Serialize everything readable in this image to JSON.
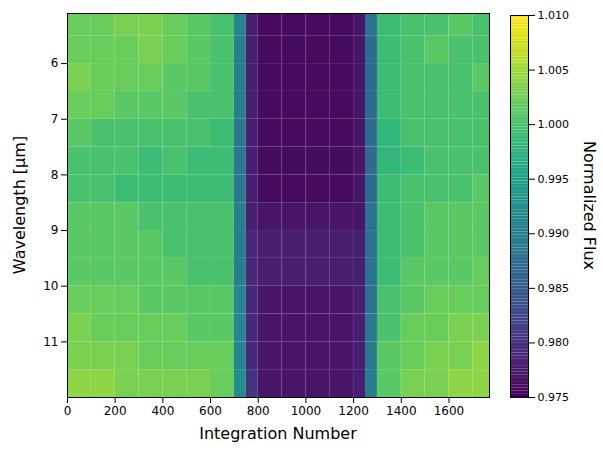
{
  "chart_data": {
    "type": "heatmap",
    "x_label": "Integration Number",
    "y_label": "Wavelength [µm]",
    "xlim": [
      0,
      1770
    ],
    "xticks": [
      0,
      200,
      400,
      600,
      800,
      1000,
      1200,
      1400,
      1600
    ],
    "ylim": [
      12.0,
      5.1
    ],
    "yticks": [
      6,
      7,
      8,
      9,
      10,
      11
    ],
    "color": "viridis",
    "cells": {
      "x_edges": [
        0,
        100,
        200,
        300,
        400,
        500,
        600,
        700,
        750,
        800,
        900,
        1000,
        1100,
        1200,
        1250,
        1300,
        1400,
        1500,
        1600,
        1700,
        1770
      ],
      "y_edges": [
        5.1,
        5.5,
        6.0,
        6.5,
        7.0,
        7.5,
        8.0,
        8.5,
        9.0,
        9.5,
        10.0,
        10.5,
        11.0,
        11.5,
        12.0
      ],
      "values": [
        [
          1.002,
          1.002,
          1.003,
          1.003,
          1.002,
          1.001,
          1.0,
          0.991,
          0.978,
          0.976,
          0.976,
          0.976,
          0.976,
          0.977,
          0.988,
          0.999,
          1.0,
          1.0,
          1.001,
          1.0
        ],
        [
          1.002,
          1.002,
          1.002,
          1.003,
          1.002,
          1.001,
          1.0,
          0.99,
          0.978,
          0.976,
          0.976,
          0.976,
          0.976,
          0.977,
          0.987,
          0.999,
          1.0,
          1.001,
          1.0,
          1.0
        ],
        [
          1.003,
          1.002,
          1.002,
          1.002,
          1.001,
          1.001,
          1.0,
          0.99,
          0.978,
          0.976,
          0.976,
          0.976,
          0.976,
          0.977,
          0.987,
          0.999,
          1.0,
          1.0,
          1.0,
          1.001
        ],
        [
          1.002,
          1.002,
          1.001,
          1.001,
          1.001,
          1.0,
          1.0,
          0.99,
          0.978,
          0.976,
          0.976,
          0.976,
          0.976,
          0.977,
          0.987,
          0.999,
          1.0,
          1.0,
          1.0,
          1.0
        ],
        [
          1.001,
          1.0,
          1.0,
          1.0,
          1.0,
          1.0,
          0.999,
          0.989,
          0.978,
          0.976,
          0.976,
          0.976,
          0.976,
          0.977,
          0.987,
          0.998,
          1.0,
          1.0,
          1.0,
          1.0
        ],
        [
          1.0,
          1.0,
          1.0,
          0.999,
          1.0,
          0.999,
          0.999,
          0.989,
          0.978,
          0.976,
          0.976,
          0.976,
          0.976,
          0.977,
          0.987,
          0.998,
          0.999,
          1.0,
          1.0,
          1.0
        ],
        [
          1.0,
          1.0,
          0.999,
          0.999,
          0.999,
          0.999,
          0.999,
          0.989,
          0.978,
          0.976,
          0.976,
          0.976,
          0.976,
          0.977,
          0.987,
          0.999,
          1.0,
          1.0,
          1.0,
          1.001
        ],
        [
          1.001,
          1.001,
          1.001,
          1.0,
          1.0,
          1.0,
          1.0,
          0.99,
          0.978,
          0.977,
          0.977,
          0.977,
          0.977,
          0.977,
          0.988,
          0.999,
          1.0,
          1.001,
          1.001,
          1.001
        ],
        [
          1.001,
          1.001,
          1.001,
          1.001,
          1.0,
          1.0,
          1.0,
          0.99,
          0.979,
          0.978,
          0.978,
          0.978,
          0.978,
          0.978,
          0.988,
          0.999,
          1.0,
          1.001,
          1.001,
          1.001
        ],
        [
          1.001,
          1.001,
          1.001,
          1.001,
          1.001,
          1.0,
          1.0,
          0.99,
          0.979,
          0.978,
          0.978,
          0.978,
          0.978,
          0.978,
          0.988,
          0.999,
          1.001,
          1.001,
          1.001,
          1.002
        ],
        [
          1.002,
          1.002,
          1.002,
          1.001,
          1.001,
          1.001,
          1.001,
          0.991,
          0.979,
          0.977,
          0.977,
          0.977,
          0.977,
          0.978,
          0.988,
          1.0,
          1.001,
          1.002,
          1.002,
          1.002
        ],
        [
          1.003,
          1.002,
          1.002,
          1.002,
          1.002,
          1.001,
          1.001,
          0.991,
          0.979,
          0.977,
          0.977,
          0.977,
          0.977,
          0.978,
          0.989,
          1.0,
          1.002,
          1.002,
          1.003,
          1.003
        ],
        [
          1.003,
          1.003,
          1.003,
          1.002,
          1.002,
          1.002,
          1.002,
          0.991,
          0.979,
          0.977,
          0.977,
          0.977,
          0.977,
          0.978,
          0.989,
          1.001,
          1.002,
          1.003,
          1.003,
          1.004
        ],
        [
          1.004,
          1.004,
          1.003,
          1.003,
          1.003,
          1.003,
          1.002,
          0.992,
          0.98,
          0.977,
          0.977,
          0.977,
          0.977,
          0.978,
          0.99,
          1.001,
          1.003,
          1.003,
          1.004,
          1.004
        ]
      ]
    },
    "colorbar": {
      "label": "Normalized Flux",
      "range": [
        0.975,
        1.01
      ],
      "ticks": [
        {
          "value": 0.975,
          "label": "0.975"
        },
        {
          "value": 0.98,
          "label": "0.980"
        },
        {
          "value": 0.985,
          "label": "0.985"
        },
        {
          "value": 0.99,
          "label": "0.990"
        },
        {
          "value": 0.995,
          "label": "0.995"
        },
        {
          "value": 1.0,
          "label": "1.000"
        },
        {
          "value": 1.005,
          "label": "1.005"
        },
        {
          "value": 1.01,
          "label": "1.010"
        }
      ]
    }
  }
}
